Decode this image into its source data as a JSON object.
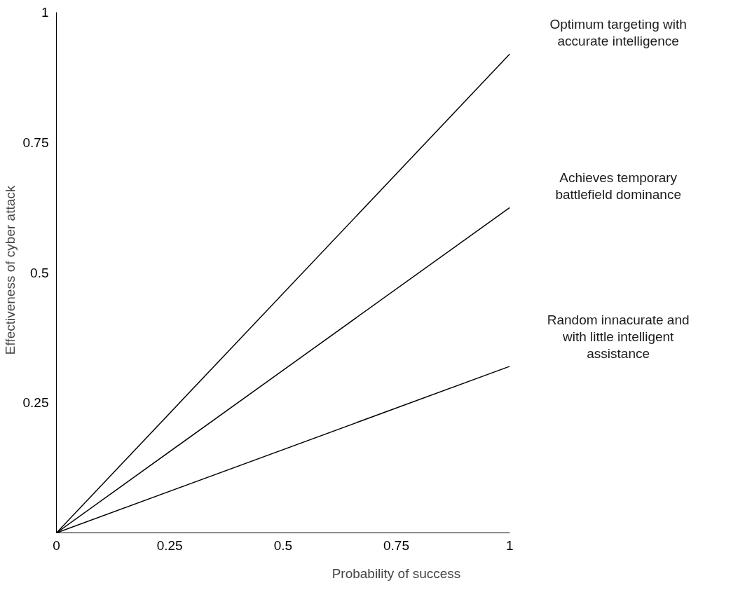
{
  "chart_data": {
    "type": "line",
    "xlabel": "Probability of success",
    "ylabel": "Effectiveness of cyber attack",
    "xlim": [
      0,
      1
    ],
    "ylim": [
      0,
      1
    ],
    "xticks": [
      0,
      0.25,
      0.5,
      0.75,
      1
    ],
    "yticks": [
      0.25,
      0.5,
      0.75,
      1
    ],
    "x": [
      0,
      1
    ],
    "series": [
      {
        "name": "Optimum targeting with\naccurate intelligence",
        "color": "#000000",
        "values": [
          0,
          0.92
        ]
      },
      {
        "name": "Achieves temporary\nbattlefield dominance",
        "color": "#000000",
        "values": [
          0,
          0.625
        ]
      },
      {
        "name": "Random innacurate and\nwith little intelligent\nassistance",
        "color": "#000000",
        "values": [
          0,
          0.32
        ]
      }
    ],
    "grid": false,
    "marker": "none",
    "line_style": "solid"
  }
}
